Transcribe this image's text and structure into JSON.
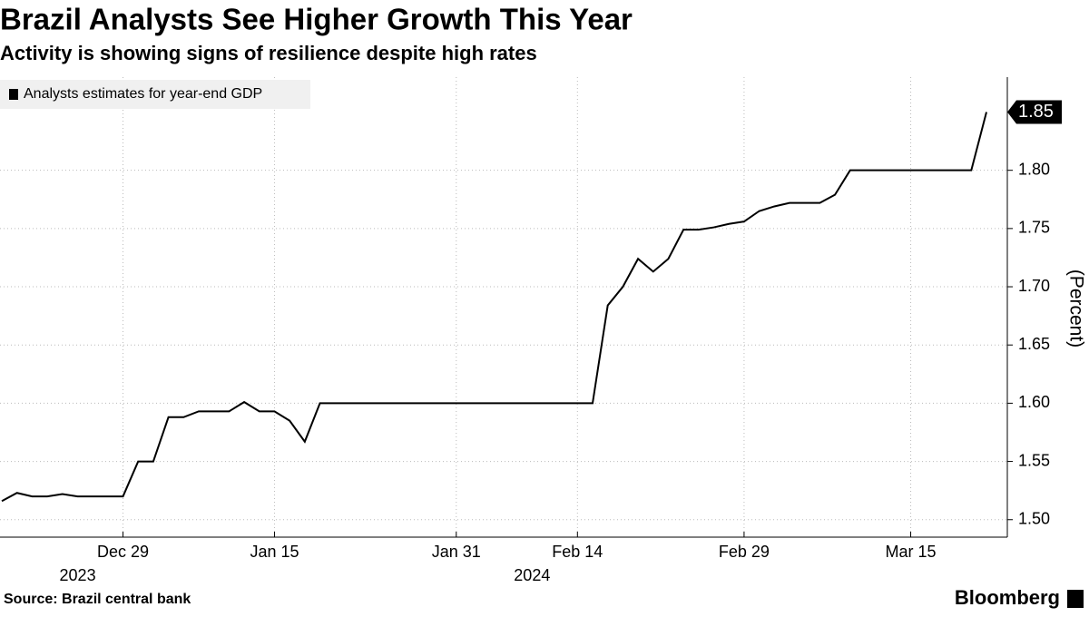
{
  "chart_data": {
    "type": "line",
    "title": "Brazil Analysts See Higher Growth This Year",
    "subtitle": "Activity is showing signs of resilience despite high rates",
    "y_axis_label": "(Percent)",
    "source": "Source:  Brazil central bank",
    "brand": "Bloomberg",
    "categories": [
      null,
      null,
      null,
      null,
      null,
      null,
      null,
      null,
      "Dec 29",
      null,
      null,
      null,
      null,
      null,
      null,
      null,
      null,
      null,
      "Jan 15",
      null,
      null,
      null,
      null,
      null,
      null,
      null,
      null,
      null,
      null,
      null,
      "Jan 31",
      null,
      null,
      null,
      null,
      null,
      null,
      null,
      "Feb 14",
      null,
      null,
      null,
      null,
      null,
      null,
      null,
      null,
      null,
      null,
      "Feb 29",
      null,
      null,
      null,
      null,
      null,
      null,
      null,
      null,
      null,
      null,
      "Mar 15",
      null,
      null,
      null,
      null,
      null
    ],
    "year_labels": [
      {
        "label": "2023",
        "at": "Dec 29"
      },
      {
        "label": "2024",
        "at": "Feb 14"
      }
    ],
    "series": [
      {
        "name": "Analysts estimates for year-end GDP",
        "color": "#000000",
        "values": [
          1.516,
          1.523,
          1.52,
          1.52,
          1.522,
          1.52,
          1.52,
          1.52,
          1.52,
          1.55,
          1.55,
          1.588,
          1.588,
          1.593,
          1.593,
          1.593,
          1.601,
          1.593,
          1.593,
          1.585,
          1.567,
          1.6,
          1.6,
          1.6,
          1.6,
          1.6,
          1.6,
          1.6,
          1.6,
          1.6,
          1.6,
          1.6,
          1.6,
          1.6,
          1.6,
          1.6,
          1.6,
          1.6,
          1.6,
          1.6,
          1.684,
          1.7,
          1.724,
          1.713,
          1.724,
          1.749,
          1.749,
          1.751,
          1.754,
          1.756,
          1.765,
          1.769,
          1.772,
          1.772,
          1.772,
          1.779,
          1.8,
          1.8,
          1.8,
          1.8,
          1.8,
          1.8,
          1.8,
          1.8,
          1.8,
          1.85
        ],
        "value_labels": [
          null,
          null,
          null,
          null,
          null,
          null,
          null,
          null,
          null,
          null,
          null,
          null,
          null,
          null,
          null,
          null,
          null,
          null,
          null,
          null,
          null,
          null,
          null,
          null,
          null,
          null,
          null,
          null,
          null,
          null,
          null,
          null,
          null,
          null,
          null,
          null,
          null,
          null,
          null,
          null,
          null,
          null,
          null,
          null,
          null,
          null,
          null,
          null,
          null,
          null,
          null,
          null,
          null,
          null,
          null,
          null,
          null,
          null,
          null,
          null,
          null,
          null,
          null,
          null,
          null,
          "1.85"
        ]
      }
    ],
    "ylim": [
      1.485,
      1.88
    ],
    "yticks": [
      {
        "value": 1.5,
        "label": "1.50"
      },
      {
        "value": 1.55,
        "label": "1.55"
      },
      {
        "value": 1.6,
        "label": "1.60"
      },
      {
        "value": 1.65,
        "label": "1.65"
      },
      {
        "value": 1.7,
        "label": "1.70"
      },
      {
        "value": 1.75,
        "label": "1.75"
      },
      {
        "value": 1.8,
        "label": "1.80"
      }
    ],
    "grid": true,
    "legend": "top-left"
  }
}
